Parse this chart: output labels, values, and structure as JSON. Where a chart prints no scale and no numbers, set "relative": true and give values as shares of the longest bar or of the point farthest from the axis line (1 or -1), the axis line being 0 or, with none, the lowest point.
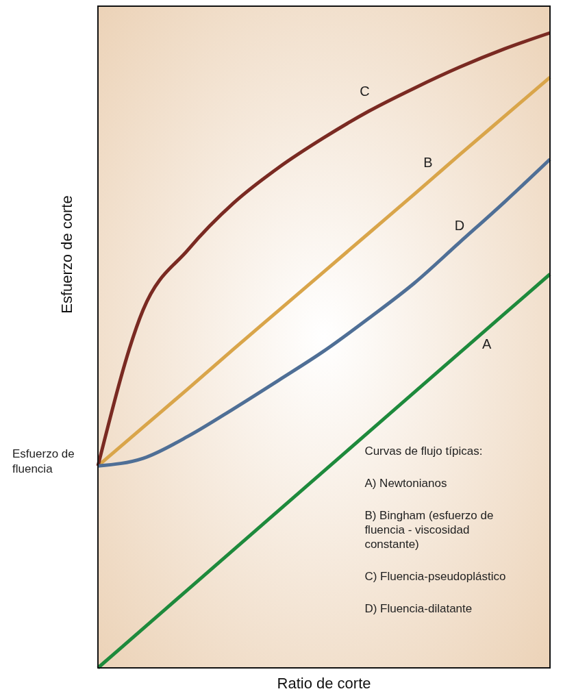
{
  "chart_data": {
    "type": "line",
    "relative": true,
    "xlabel": "Ratio de corte",
    "ylabel": "Esfuerzo de corte",
    "categories": [
      null,
      null,
      null,
      null,
      null,
      null,
      null,
      null,
      null,
      null,
      null
    ],
    "series": [
      {
        "name": "A",
        "color": "#1e8a3c",
        "values": [
          0,
          0.062,
          0.124,
          0.186,
          0.248,
          0.31,
          0.372,
          0.434,
          0.496,
          0.558,
          0.62
        ]
      },
      {
        "name": "B",
        "color": "#d9a54a",
        "values": [
          0.318,
          0.379,
          0.44,
          0.502,
          0.563,
          0.624,
          0.685,
          0.746,
          0.808,
          0.869,
          0.93
        ]
      },
      {
        "name": "C",
        "color": "#7a2a22",
        "values": [
          0.318,
          0.564,
          0.659,
          0.732,
          0.788,
          0.835,
          0.877,
          0.913,
          0.946,
          0.975,
          1
        ]
      },
      {
        "name": "D",
        "color": "#4f6f96",
        "values": [
          0.318,
          0.33,
          0.365,
          0.408,
          0.453,
          0.499,
          0.551,
          0.606,
          0.67,
          0.734,
          0.801
        ]
      }
    ],
    "annotations": [
      "Esfuerzo de fluencia",
      "Curvas de flujo típicas:",
      "A) Newtonianos",
      "B) Bingham (esfuerzo de fluencia - viscosidad constante)",
      "C) Fluencia-pseudoplástico",
      "D) Fluencia-dilatante"
    ],
    "grid": false,
    "marker": "none",
    "line_style": "solid"
  }
}
